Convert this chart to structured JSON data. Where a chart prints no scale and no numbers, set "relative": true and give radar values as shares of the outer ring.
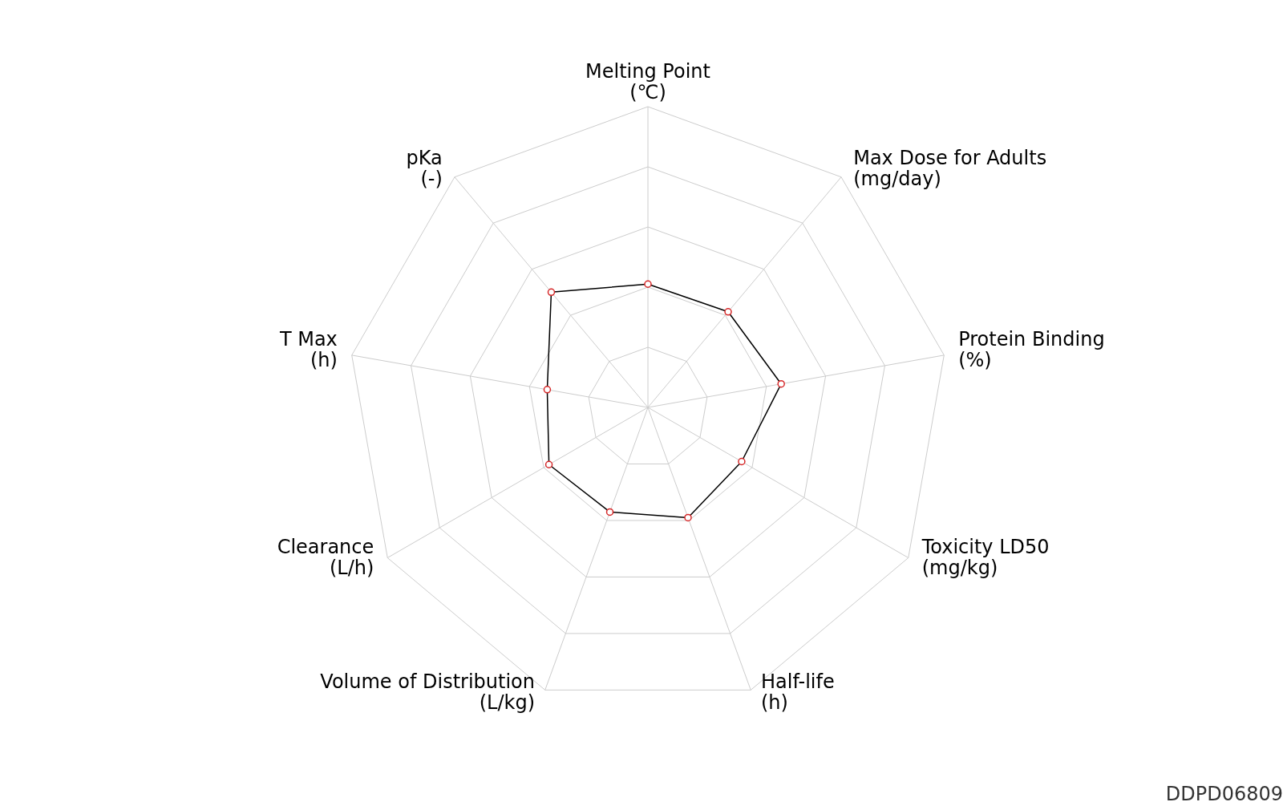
{
  "chart_data": {
    "type": "radar",
    "relative": true,
    "categories": [
      "Melting Point\n(℃)",
      "Max Dose for Adults\n(mg/day)",
      "Protein Binding\n(%)",
      "Toxicity LD50\n(mg/kg)",
      "Half-life\n(h)",
      "Volume of Distribution\n(L/kg)",
      "Clearance\n(L/h)",
      "T Max\n(h)",
      "pKa\n(-)"
    ],
    "series": [
      {
        "color": "#000000",
        "values": [
          0.41,
          0.415,
          0.45,
          0.36,
          0.39,
          0.37,
          0.38,
          0.34,
          0.5
        ]
      }
    ],
    "marker": "circle",
    "grid": true,
    "annotations": [
      "DDPD06809"
    ]
  }
}
